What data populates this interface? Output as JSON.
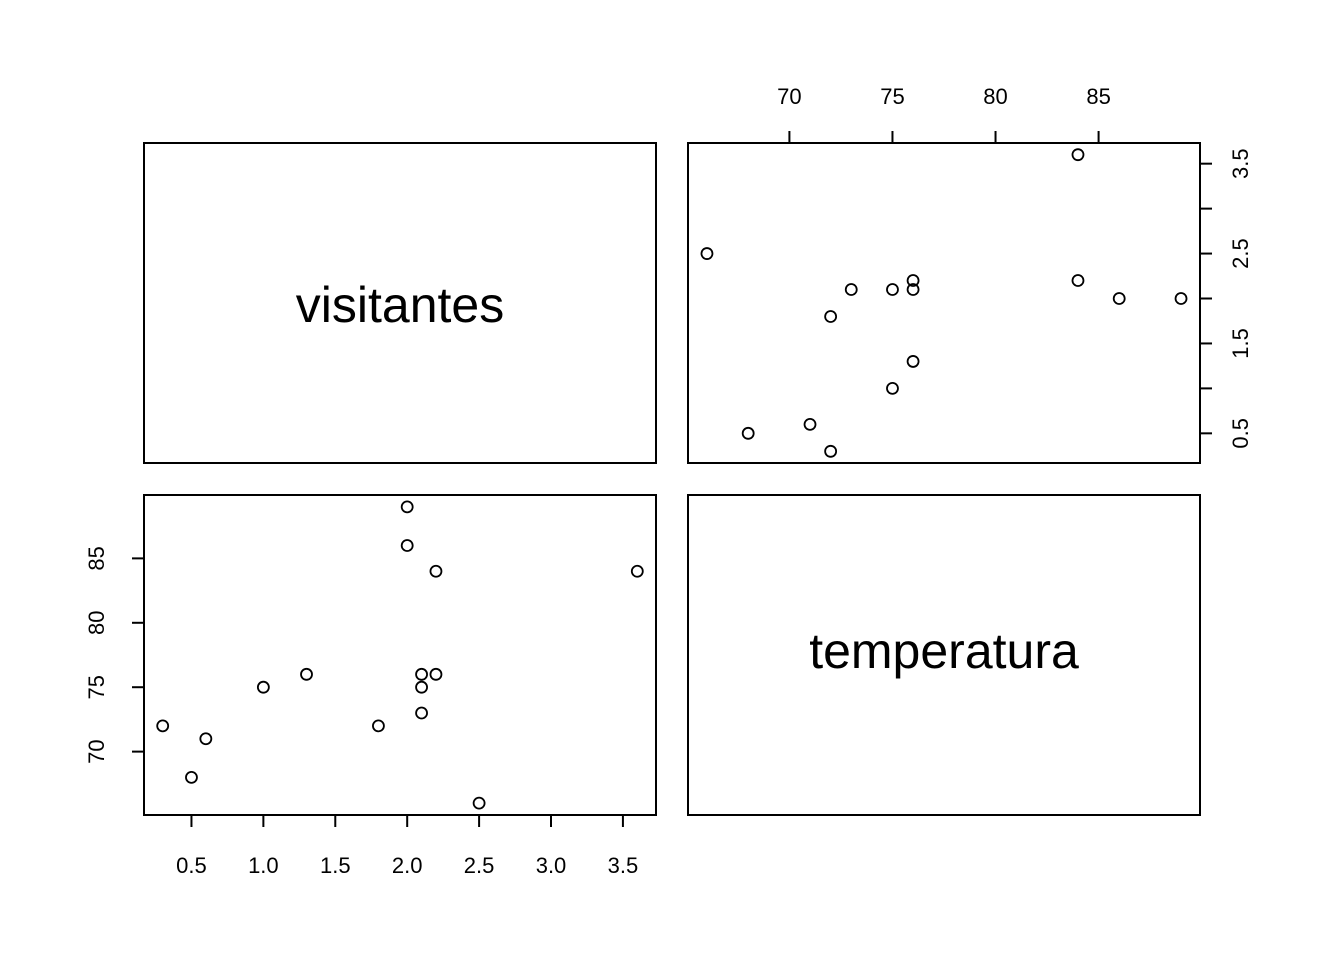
{
  "chart_data": {
    "type": "scatter",
    "layout": "pairs",
    "variables": [
      "visitantes",
      "temperatura"
    ],
    "observations": [
      {
        "visitantes": 0.3,
        "temperatura": 72
      },
      {
        "visitantes": 0.5,
        "temperatura": 68
      },
      {
        "visitantes": 0.6,
        "temperatura": 71
      },
      {
        "visitantes": 1.0,
        "temperatura": 75
      },
      {
        "visitantes": 1.3,
        "temperatura": 76
      },
      {
        "visitantes": 1.8,
        "temperatura": 72
      },
      {
        "visitantes": 2.0,
        "temperatura": 89
      },
      {
        "visitantes": 2.0,
        "temperatura": 86
      },
      {
        "visitantes": 2.1,
        "temperatura": 73
      },
      {
        "visitantes": 2.1,
        "temperatura": 75
      },
      {
        "visitantes": 2.1,
        "temperatura": 76
      },
      {
        "visitantes": 2.2,
        "temperatura": 84
      },
      {
        "visitantes": 2.2,
        "temperatura": 76
      },
      {
        "visitantes": 2.5,
        "temperatura": 66
      },
      {
        "visitantes": 3.6,
        "temperatura": 84
      }
    ],
    "axes": {
      "visitantes": {
        "range": [
          0.17,
          3.73
        ],
        "ticks": [
          0.5,
          1.0,
          1.5,
          2.0,
          2.5,
          3.0,
          3.5
        ],
        "tick_labels_bottom": [
          "0.5",
          "1.0",
          "1.5",
          "2.0",
          "2.5",
          "3.0",
          "3.5"
        ],
        "tick_labels_right": [
          "0.5",
          "",
          "1.5",
          "",
          "2.5",
          "",
          "3.5"
        ]
      },
      "temperatura": {
        "range": [
          65.08,
          89.92
        ],
        "ticks": [
          70,
          75,
          80,
          85
        ],
        "tick_labels": [
          "70",
          "75",
          "80",
          "85"
        ]
      }
    },
    "grid": false,
    "legend": "none"
  }
}
